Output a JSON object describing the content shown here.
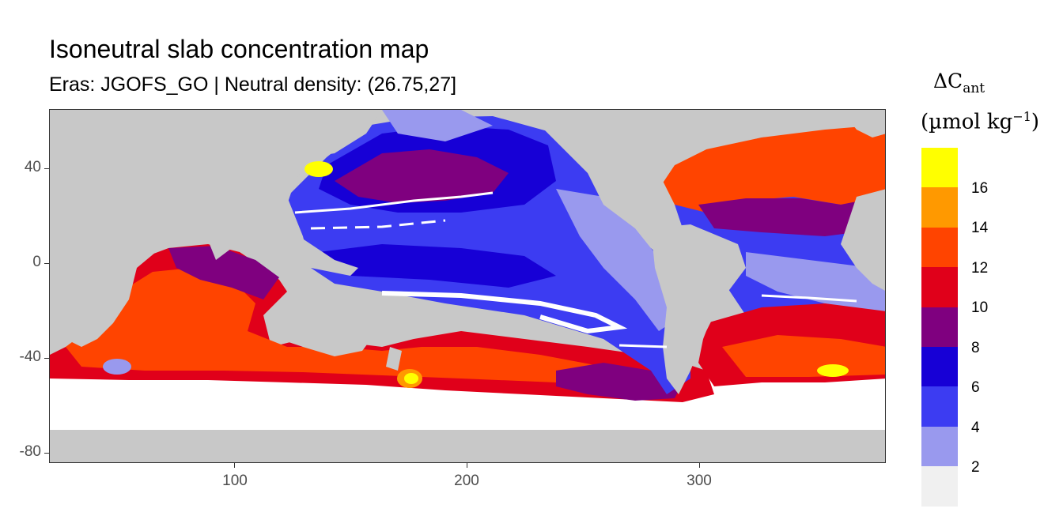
{
  "header": {
    "title": "Isoneutral slab concentration map",
    "subtitle": "Eras: JGOFS_GO | Neutral density: (26.75,27]"
  },
  "axes": {
    "x_ticks": [
      "100",
      "200",
      "300"
    ],
    "y_ticks": [
      "40",
      "0",
      "-40",
      "-80"
    ],
    "x_range": [
      20,
      380
    ],
    "y_range": [
      -85,
      65
    ]
  },
  "legend": {
    "title_symbol": "ΔC",
    "title_sub": "ant",
    "unit_main": "(µmol kg",
    "unit_sup": "−1",
    "unit_close": ")",
    "labels": [
      "16",
      "14",
      "12",
      "10",
      "8",
      "6",
      "4",
      "2"
    ],
    "colors": [
      "#FFFF00",
      "#FF9900",
      "#FF4400",
      "#E0001A",
      "#7F007F",
      "#1700D6",
      "#3C3CF2",
      "#9999EE",
      "#F0F0F0"
    ]
  },
  "map": {
    "land_color": "#C8C8C8",
    "no_data_color": "#FFFFFF",
    "gridline_color": "#EBEBEB"
  }
}
